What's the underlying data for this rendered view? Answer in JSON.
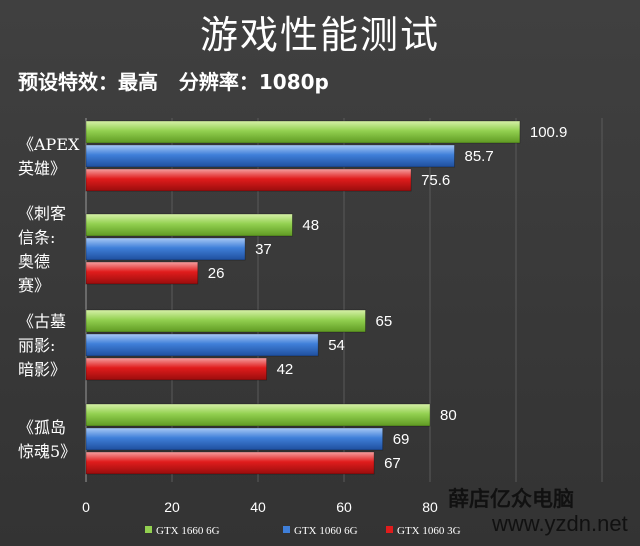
{
  "title": "游戏性能测试",
  "subtitle": "预设特效：最高   分辨率：1080p",
  "watermark": {
    "name": "薛店亿众电脑",
    "url": "www.yzdn.net"
  },
  "chart_data": {
    "type": "bar",
    "orientation": "horizontal",
    "categories": [
      [
        "《APEX",
        "英雄》"
      ],
      [
        "《刺客",
        "信条:",
        "奥德",
        "赛》"
      ],
      [
        "《古墓",
        "丽影:",
        "暗影》"
      ],
      [
        "《孤岛",
        "惊魂5》"
      ]
    ],
    "series": [
      {
        "name": "GTX 1660 6G",
        "color": "#92d050",
        "values": [
          100.9,
          48,
          65,
          80
        ]
      },
      {
        "name": "GTX 1060 6G",
        "color": "#3f7fd9",
        "values": [
          85.7,
          37,
          54,
          69
        ]
      },
      {
        "name": "GTX 1060 3G",
        "color": "#e01c1c",
        "values": [
          75.6,
          26,
          42,
          67
        ]
      }
    ],
    "x_ticks": [
      0,
      20,
      40,
      60,
      80
    ],
    "xlim": [
      0,
      120
    ],
    "grid": true,
    "legend_position": "bottom"
  }
}
